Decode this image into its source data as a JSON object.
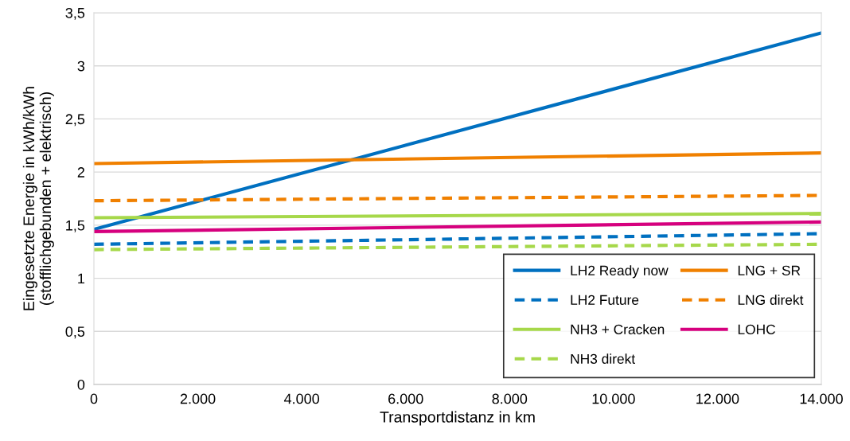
{
  "chart_data": {
    "type": "line",
    "xlabel": "Transportdistanz in km",
    "ylabel": "Eingesetzte Energie in kWh/kWh\n(stofflichgebunden + elektrisch)",
    "xlim": [
      0,
      14000
    ],
    "ylim": [
      0,
      3.5
    ],
    "xticks": [
      0,
      {
        "value": 2000,
        "label": "2.000"
      },
      {
        "value": 4000,
        "label": "4.000"
      },
      {
        "value": 6000,
        "label": "6.000"
      },
      {
        "value": 8000,
        "label": "8.000"
      },
      {
        "value": 10000,
        "label": "10.000"
      },
      {
        "value": 12000,
        "label": "12.000"
      },
      {
        "value": 14000,
        "label": "14.000"
      }
    ],
    "yticks": [
      0,
      {
        "value": 0.5,
        "label": "0,5"
      },
      1,
      {
        "value": 1.5,
        "label": "1,5"
      },
      2,
      {
        "value": 2.5,
        "label": "2,5"
      },
      3,
      {
        "value": 3.5,
        "label": "3,5"
      }
    ],
    "grid": "y",
    "legend": "bottom right",
    "marker": "none",
    "x": [
      0,
      14000
    ],
    "series": [
      {
        "name": "LH2 Ready now",
        "color": "#0070c0",
        "line_style": "solid",
        "values": [
          1.46,
          3.31
        ]
      },
      {
        "name": "LH2 Future",
        "color": "#0070c0",
        "line_style": "dashed",
        "values": [
          1.32,
          1.42
        ]
      },
      {
        "name": "NH3 + Cracken",
        "color": "#a6d84a",
        "line_style": "solid",
        "values": [
          1.57,
          1.61
        ]
      },
      {
        "name": "NH3 direkt",
        "color": "#a6d84a",
        "line_style": "dashed",
        "values": [
          1.27,
          1.32
        ]
      },
      {
        "name": "LNG + SR",
        "color": "#f08000",
        "line_style": "solid",
        "values": [
          2.08,
          2.18
        ]
      },
      {
        "name": "LNG direkt",
        "color": "#f08000",
        "line_style": "dashed",
        "values": [
          1.73,
          1.78
        ]
      },
      {
        "name": "LOHC",
        "color": "#d6007e",
        "line_style": "solid",
        "values": [
          1.44,
          1.53
        ]
      }
    ]
  }
}
